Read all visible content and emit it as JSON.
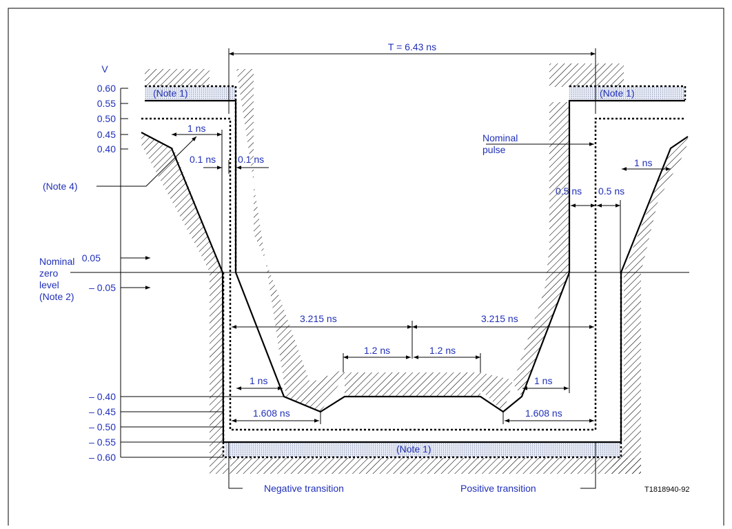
{
  "axis": {
    "unit": "V",
    "ticks": [
      "0.60",
      "0.55",
      "0.50",
      "0.45",
      "0.40",
      "0.05",
      "– 0.05",
      "– 0.40",
      "– 0.45",
      "– 0.50",
      "– 0.55",
      "– 0.60"
    ]
  },
  "labels": {
    "period": "T = 6.43 ns",
    "note1_left": "(Note 1)",
    "note1_right": "(Note 1)",
    "note1_bottom": "(Note 1)",
    "note4": "(Note 4)",
    "nominal_zero_1": "Nominal",
    "nominal_zero_2": "zero",
    "nominal_zero_3": "level",
    "nominal_zero_4": "(Note 2)",
    "nominal_pulse_1": "Nominal",
    "nominal_pulse_2": "pulse",
    "negative_transition": "Negative transition",
    "positive_transition": "Positive transition",
    "figure_id": "T1818940-92"
  },
  "dimensions": {
    "left_1ns_top": "1 ns",
    "left_0_1ns": "0.1 ns",
    "right_0_1ns": "0.1 ns",
    "left_3_215": "3.215 ns",
    "right_3_215": "3.215 ns",
    "left_1_2": "1.2 ns",
    "right_1_2": "1.2 ns",
    "left_1ns_bottom": "1 ns",
    "right_1ns_bottom": "1 ns",
    "left_1_608": "1.608 ns",
    "right_1_608": "1.608 ns",
    "left_0_5": "0.5 ns",
    "right_0_5": "0.5 ns",
    "right_1ns_top": "1 ns"
  }
}
